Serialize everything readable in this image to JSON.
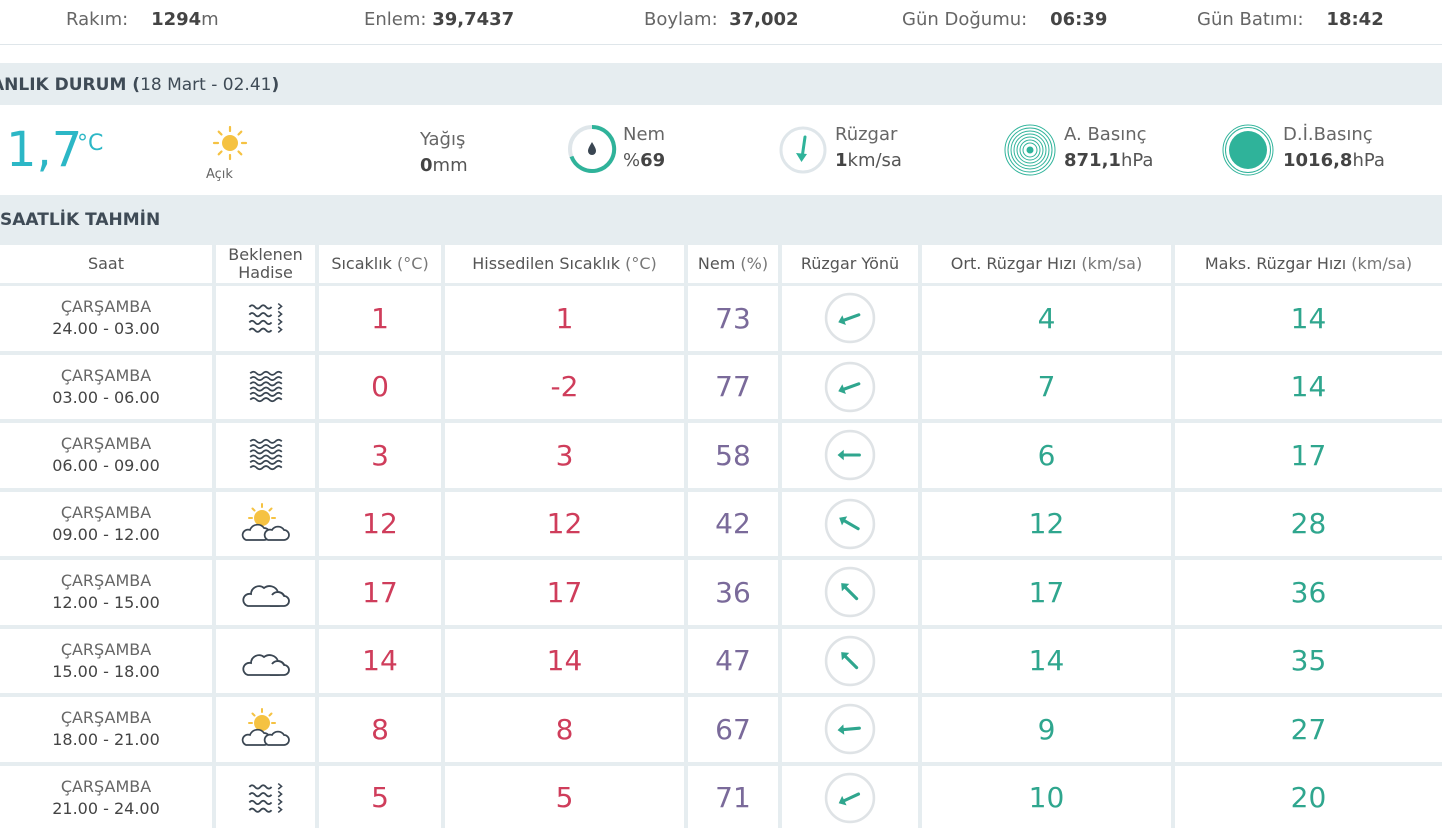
{
  "top": {
    "rakim_label": "Rakım:",
    "rakim_value": "1294",
    "rakim_unit": "m",
    "enlem_label": "Enlem:",
    "enlem_value": "39,7437",
    "boylam_label": "Boylam:",
    "boylam_value": "37,002",
    "gun_dogumu_label": "Gün Doğumu:",
    "gun_dogumu_value": "06:39",
    "gun_batimi_label": "Gün Batımı:",
    "gun_batimi_value": "18:42"
  },
  "current": {
    "heading": "ANLIK DURUM (",
    "heading_date": "18 Mart - 02.41",
    "heading_close": ")",
    "temp": "1,7",
    "temp_unit": "°C",
    "condition": "Açık",
    "yagis_label": "Yağış",
    "yagis_value": "0",
    "yagis_unit": "mm",
    "nem_label": "Nem",
    "nem_prefix": "%",
    "nem_value": "69",
    "ruzgar_label": "Rüzgar",
    "ruzgar_value": "1",
    "ruzgar_unit": "km/sa",
    "abasinc_label": "A. Basınç",
    "abasinc_value": "871,1",
    "abasinc_unit": "hPa",
    "dibasinc_label": "D.İ.Basınç",
    "dibasinc_value": "1016,8",
    "dibasinc_unit": "hPa",
    "colors": {
      "temp": "#2cb7c6",
      "accent": "#2fb39a",
      "sun": "#f5c242"
    }
  },
  "forecast": {
    "heading": "SAATLİK TAHMİN",
    "headers": {
      "saat": "Saat",
      "hadise_1": "Beklenen",
      "hadise_2": "Hadise",
      "sicaklik": "Sıcaklık ",
      "sicaklik_unit": "(°C)",
      "hissedilen": "Hissedilen Sıcaklık ",
      "hissedilen_unit": "(°C)",
      "nem": "Nem ",
      "nem_unit": "(%)",
      "yon": "Rüzgar Yönü",
      "ort": "Ort. Rüzgar Hızı ",
      "ort_unit": "(km/sa)",
      "maks": "Maks. Rüzgar Hızı ",
      "maks_unit": "(km/sa)"
    },
    "rows": [
      {
        "day": "ÇARŞAMBA",
        "time": "24.00 - 03.00",
        "icon": "fog-wind-icon",
        "temp": "1",
        "feels": "1",
        "hum": "73",
        "dir_deg": 250,
        "avg": "4",
        "max": "14"
      },
      {
        "day": "ÇARŞAMBA",
        "time": "03.00 - 06.00",
        "icon": "fog-icon",
        "temp": "0",
        "feels": "-2",
        "hum": "77",
        "dir_deg": 250,
        "avg": "7",
        "max": "14"
      },
      {
        "day": "ÇARŞAMBA",
        "time": "06.00 - 09.00",
        "icon": "fog-icon",
        "temp": "3",
        "feels": "3",
        "hum": "58",
        "dir_deg": 270,
        "avg": "6",
        "max": "17"
      },
      {
        "day": "ÇARŞAMBA",
        "time": "09.00 - 12.00",
        "icon": "partly-cloudy-icon",
        "temp": "12",
        "feels": "12",
        "hum": "42",
        "dir_deg": 300,
        "avg": "12",
        "max": "28"
      },
      {
        "day": "ÇARŞAMBA",
        "time": "12.00 - 15.00",
        "icon": "cloudy-icon",
        "temp": "17",
        "feels": "17",
        "hum": "36",
        "dir_deg": 315,
        "avg": "17",
        "max": "36"
      },
      {
        "day": "ÇARŞAMBA",
        "time": "15.00 - 18.00",
        "icon": "cloudy-icon",
        "temp": "14",
        "feels": "14",
        "hum": "47",
        "dir_deg": 315,
        "avg": "14",
        "max": "35"
      },
      {
        "day": "ÇARŞAMBA",
        "time": "18.00 - 21.00",
        "icon": "partly-cloudy-icon",
        "temp": "8",
        "feels": "8",
        "hum": "67",
        "dir_deg": 265,
        "avg": "9",
        "max": "27"
      },
      {
        "day": "ÇARŞAMBA",
        "time": "21.00 - 24.00",
        "icon": "fog-wind-icon",
        "temp": "5",
        "feels": "5",
        "hum": "71",
        "dir_deg": 245,
        "avg": "10",
        "max": "20"
      }
    ]
  }
}
